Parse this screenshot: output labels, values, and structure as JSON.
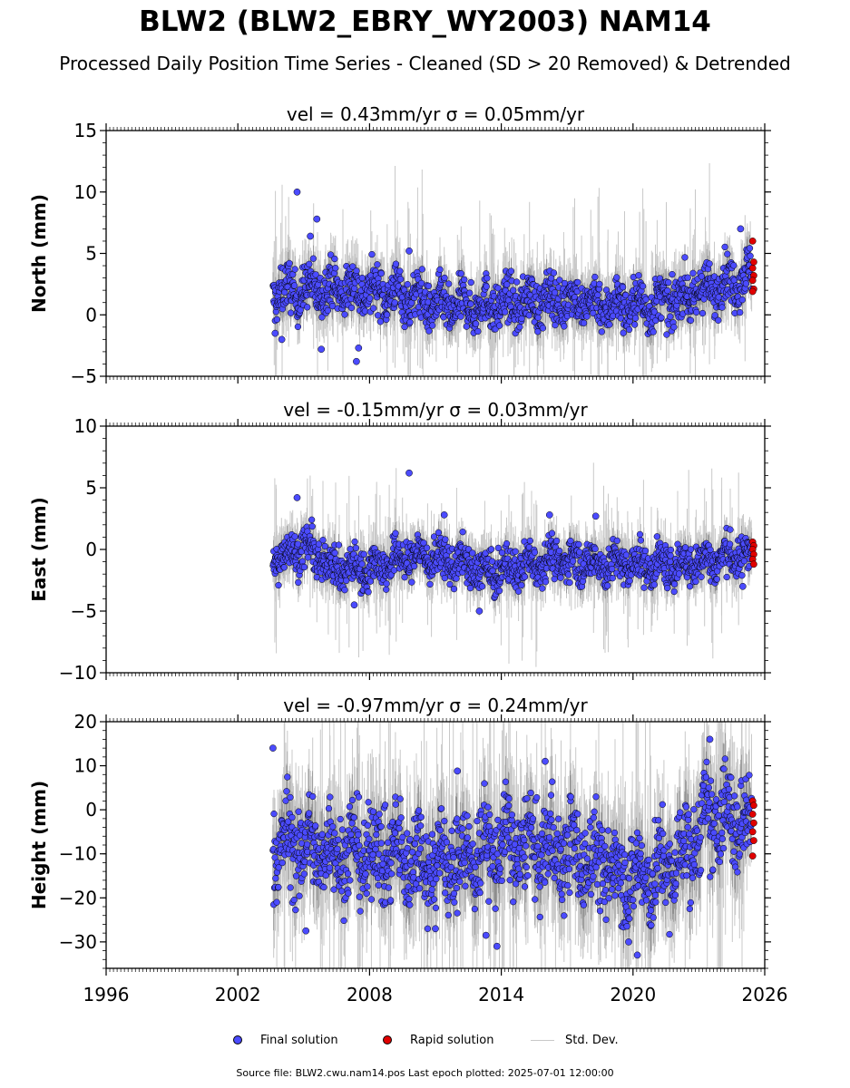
{
  "figure": {
    "title": "BLW2 (BLW2_EBRY_WY2003) NAM14",
    "subtitle": "Processed Daily Position Time Series - Cleaned (SD > 20 Removed) & Detrended",
    "source_note": "Source file: BLW2.cwu.nam14.pos  Last epoch plotted: 2025-07-01 12:00:00",
    "legend": [
      {
        "label": "Final solution",
        "kind": "dot",
        "color": "#4b4bff"
      },
      {
        "label": "Rapid solution",
        "kind": "dot",
        "color": "#e00000"
      },
      {
        "label": "Std. Dev.",
        "kind": "line",
        "color": "#c8c8c8"
      }
    ],
    "colors": {
      "final": "#4b4bff",
      "rapid": "#e00000",
      "stddev": "#c8c8c8",
      "dense_band": "#555555"
    }
  },
  "chart_data": [
    {
      "type": "scatter",
      "panel": "north",
      "title": "vel = 0.43mm/yr   σ = 0.05mm/yr",
      "ylabel": "North (mm)",
      "xlim": [
        1996,
        2026
      ],
      "ylim": [
        -5,
        15
      ],
      "yticks": [
        -5,
        0,
        5,
        10,
        15
      ],
      "ytick_labels": [
        "−5",
        "0",
        "5",
        "10",
        "15"
      ],
      "xticks": [
        1996,
        2002,
        2008,
        2014,
        2020,
        2026
      ],
      "xtick_labels": [],
      "data_range": [
        2003.6,
        2025.4
      ],
      "rapid_range": [
        2025.45,
        2025.5
      ],
      "approx_level": [
        [
          2003.6,
          1.8
        ],
        [
          2006.5,
          2.2
        ],
        [
          2009.0,
          1.8
        ],
        [
          2011.5,
          0.6
        ],
        [
          2014.0,
          0.9
        ],
        [
          2017.0,
          1.3
        ],
        [
          2019.0,
          0.8
        ],
        [
          2021.0,
          0.8
        ],
        [
          2023.0,
          1.8
        ],
        [
          2025.4,
          3.3
        ]
      ],
      "spread": 1.2,
      "outliers": [
        [
          2004.7,
          10.0
        ],
        [
          2005.6,
          7.8
        ],
        [
          2005.3,
          6.4
        ],
        [
          2005.8,
          -2.8
        ],
        [
          2007.4,
          -3.8
        ],
        [
          2007.5,
          -2.7
        ],
        [
          2009.8,
          5.2
        ],
        [
          2024.9,
          7.0
        ],
        [
          2003.7,
          -1.5
        ],
        [
          2004.0,
          -2.0
        ]
      ],
      "rapid_points": [
        6.0,
        4.3,
        3.8,
        3.2,
        2.8,
        2.1,
        1.9
      ]
    },
    {
      "type": "scatter",
      "panel": "east",
      "title": "vel = -0.15mm/yr   σ = 0.03mm/yr",
      "ylabel": "East (mm)",
      "xlim": [
        1996,
        2026
      ],
      "ylim": [
        -10,
        10
      ],
      "yticks": [
        -10,
        -5,
        0,
        5,
        10
      ],
      "ytick_labels": [
        "−10",
        "−5",
        "0",
        "5",
        "10"
      ],
      "xticks": [
        1996,
        2002,
        2008,
        2014,
        2020,
        2026
      ],
      "xtick_labels": [],
      "data_range": [
        2003.6,
        2025.4
      ],
      "rapid_range": [
        2025.45,
        2025.5
      ],
      "approx_level": [
        [
          2003.6,
          -0.8
        ],
        [
          2005.0,
          0.2
        ],
        [
          2006.5,
          -1.6
        ],
        [
          2008.0,
          -1.5
        ],
        [
          2010.0,
          -0.5
        ],
        [
          2012.0,
          -1.0
        ],
        [
          2013.5,
          -2.0
        ],
        [
          2016.0,
          -0.8
        ],
        [
          2019.0,
          -1.2
        ],
        [
          2022.0,
          -1.3
        ],
        [
          2025.4,
          -0.3
        ]
      ],
      "spread": 1.0,
      "outliers": [
        [
          2009.8,
          6.2
        ],
        [
          2004.7,
          4.2
        ],
        [
          2011.4,
          2.8
        ],
        [
          2016.2,
          2.8
        ],
        [
          2018.3,
          2.7
        ],
        [
          2013.0,
          -5.0
        ],
        [
          2007.3,
          -4.5
        ],
        [
          2025.0,
          -3.0
        ]
      ],
      "rapid_points": [
        0.6,
        0.3,
        0.0,
        -0.4,
        -0.8,
        -1.2
      ]
    },
    {
      "type": "scatter",
      "panel": "height",
      "title": "vel = -0.97mm/yr   σ = 0.24mm/yr",
      "ylabel": "Height (mm)",
      "xlim": [
        1996,
        2026
      ],
      "ylim": [
        -36,
        20
      ],
      "yticks": [
        -30,
        -20,
        -10,
        0,
        10,
        20
      ],
      "ytick_labels": [
        "−30",
        "−20",
        "−10",
        "0",
        "10",
        "20"
      ],
      "xticks": [
        1996,
        2002,
        2008,
        2014,
        2020,
        2026
      ],
      "xtick_labels": [
        "1996",
        "2002",
        "2008",
        "2014",
        "2020",
        "2026"
      ],
      "data_range": [
        2003.6,
        2025.4
      ],
      "rapid_range": [
        2025.45,
        2025.5
      ],
      "approx_level": [
        [
          2003.6,
          -8
        ],
        [
          2006.0,
          -9
        ],
        [
          2009.0,
          -10
        ],
        [
          2011.5,
          -12
        ],
        [
          2014.0,
          -8
        ],
        [
          2016.5,
          -9
        ],
        [
          2018.5,
          -12
        ],
        [
          2020.5,
          -16
        ],
        [
          2022.0,
          -12
        ],
        [
          2023.5,
          -2
        ],
        [
          2025.4,
          -2
        ]
      ],
      "spread": 6.5,
      "outliers": [
        [
          2003.6,
          14.0
        ],
        [
          2023.5,
          16.0
        ],
        [
          2013.3,
          -28.5
        ],
        [
          2013.8,
          -31.0
        ],
        [
          2020.2,
          -33.0
        ],
        [
          2019.8,
          -30.0
        ],
        [
          2005.1,
          -27.5
        ],
        [
          2011.0,
          -27.0
        ],
        [
          2016.0,
          11.0
        ],
        [
          2012.0,
          8.8
        ]
      ],
      "rapid_points": [
        2.0,
        1.0,
        -1.0,
        -3.0,
        -5.0,
        -7.0,
        -10.5
      ]
    }
  ]
}
